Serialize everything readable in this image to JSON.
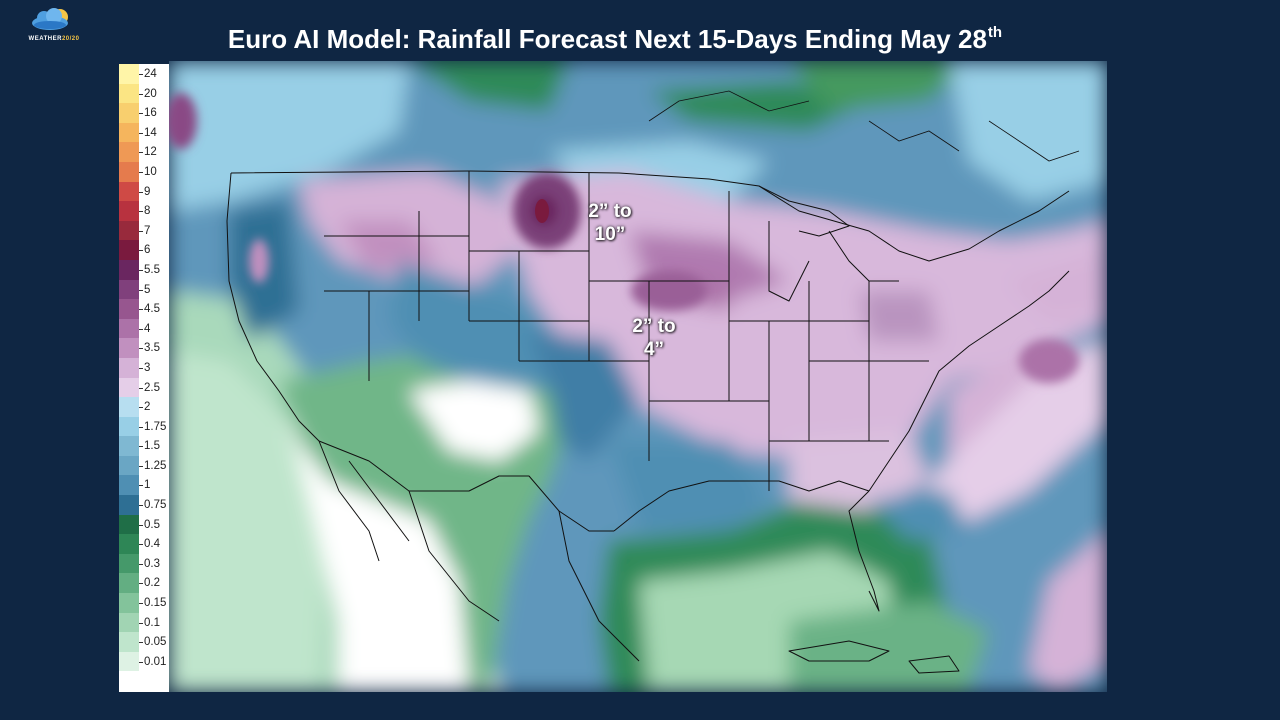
{
  "logo": {
    "name": "logo",
    "text_main": "WEATHER",
    "text_num": "20/20"
  },
  "title": {
    "text": "Euro AI Model: Rainfall Forecast Next 15-Days Ending May 28",
    "suffix": "th"
  },
  "legend": {
    "levels": [
      {
        "label": "24",
        "color": "#fff5a8"
      },
      {
        "label": "20",
        "color": "#fbe584"
      },
      {
        "label": "16",
        "color": "#f8cf6e"
      },
      {
        "label": "14",
        "color": "#f5b55d"
      },
      {
        "label": "12",
        "color": "#ef9955"
      },
      {
        "label": "10",
        "color": "#e57b4d"
      },
      {
        "label": "9",
        "color": "#cf4a45"
      },
      {
        "label": "8",
        "color": "#b8323f"
      },
      {
        "label": "7",
        "color": "#982a3c"
      },
      {
        "label": "6",
        "color": "#7a1a3e"
      },
      {
        "label": "5.5",
        "color": "#6a2660"
      },
      {
        "label": "5",
        "color": "#80407c"
      },
      {
        "label": "4.5",
        "color": "#97568f"
      },
      {
        "label": "4",
        "color": "#ac72a8"
      },
      {
        "label": "3.5",
        "color": "#c190bf"
      },
      {
        "label": "3",
        "color": "#d5b2d7"
      },
      {
        "label": "2.5",
        "color": "#e5cee8"
      },
      {
        "label": "2",
        "color": "#b7def0"
      },
      {
        "label": "1.75",
        "color": "#98cfe6"
      },
      {
        "label": "1.5",
        "color": "#7fb8d2"
      },
      {
        "label": "1.25",
        "color": "#6aa6c4"
      },
      {
        "label": "1",
        "color": "#4f8fb3"
      },
      {
        "label": "0.75",
        "color": "#2e6f94"
      },
      {
        "label": "0.5",
        "color": "#1f6e47"
      },
      {
        "label": "0.4",
        "color": "#2e8656"
      },
      {
        "label": "0.3",
        "color": "#45996a"
      },
      {
        "label": "0.2",
        "color": "#63ae82"
      },
      {
        "label": "0.15",
        "color": "#83c39b"
      },
      {
        "label": "0.1",
        "color": "#a1d4b3"
      },
      {
        "label": "0.05",
        "color": "#bfe5cc"
      },
      {
        "label": "0.01",
        "color": "#def2e4"
      },
      {
        "label": "",
        "color": "#ffffff"
      }
    ]
  },
  "annotations": [
    {
      "id": "annot-dakotas",
      "line1": "2” to",
      "line2": "10”"
    },
    {
      "id": "annot-midwest",
      "line1": "2” to",
      "line2": "4”"
    }
  ]
}
